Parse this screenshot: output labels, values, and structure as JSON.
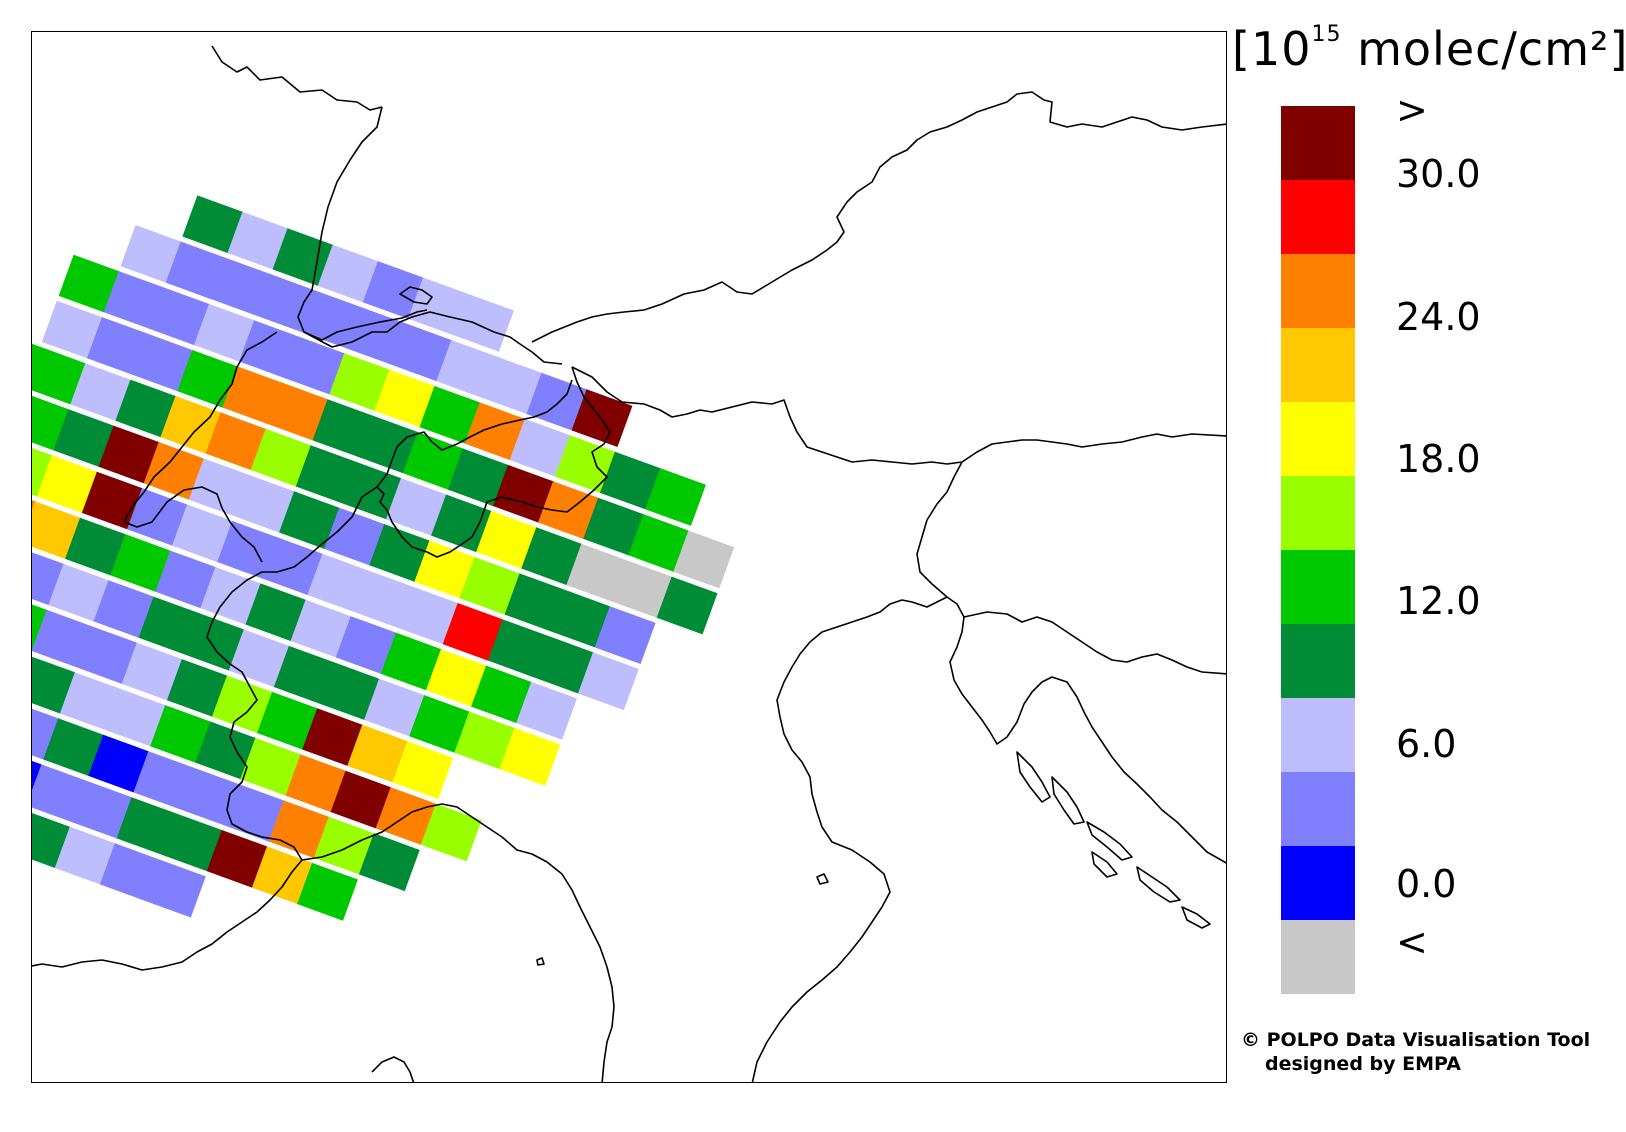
{
  "legend": {
    "unit_prefix": "[10",
    "unit_exp": "15",
    "unit_suffix": " molec/cm²]",
    "colors": [
      "#800000",
      "#ff0000",
      "#ff8000",
      "#ffc800",
      "#ffff00",
      "#99ff00",
      "#00c800",
      "#008c37",
      "#bebeff",
      "#8080ff",
      "#0000ff",
      "#c8c8c8"
    ],
    "above_label": ">",
    "below_label": "<",
    "ticks": [
      "30.0",
      "24.0",
      "18.0",
      "12.0",
      "6.0",
      "0.0"
    ]
  },
  "credit": {
    "line1": "© POLPO Data Visualisation Tool",
    "line2": "designed by EMPA"
  },
  "swaths": [
    [
      7,
      8,
      7,
      8,
      9,
      8,
      8
    ],
    [
      8,
      9,
      9,
      9,
      9,
      9,
      9,
      8,
      8,
      9,
      0
    ],
    [
      6,
      9,
      9,
      8,
      9,
      9,
      5,
      4,
      6,
      2,
      8,
      5,
      7,
      6
    ],
    [
      8,
      9,
      9,
      6,
      2,
      2,
      7,
      7,
      6,
      7,
      0,
      2,
      7,
      6,
      11
    ],
    [
      6,
      6,
      8,
      7,
      3,
      2,
      5,
      7,
      7,
      8,
      7,
      4,
      7,
      11,
      11,
      7
    ],
    [
      6,
      6,
      7,
      0,
      2,
      8,
      8,
      7,
      9,
      7,
      4,
      5,
      7,
      7,
      9
    ],
    [
      5,
      5,
      4,
      0,
      9,
      8,
      9,
      9,
      8,
      8,
      8,
      1,
      7,
      7,
      8
    ],
    [
      0,
      2,
      3,
      7,
      6,
      9,
      8,
      7,
      8,
      9,
      6,
      4,
      6,
      8
    ],
    [
      5,
      6,
      9,
      8,
      9,
      7,
      7,
      8,
      7,
      7,
      8,
      6,
      5,
      4
    ],
    [
      7,
      3,
      6,
      9,
      9,
      8,
      7,
      5,
      6,
      0,
      3,
      4
    ],
    [
      10,
      10,
      9,
      7,
      8,
      8,
      6,
      7,
      5,
      2,
      0,
      2,
      5
    ],
    [
      10,
      11,
      8,
      9,
      7,
      10,
      9,
      9,
      9,
      2,
      5,
      7
    ],
    [
      10,
      9,
      10,
      10,
      9,
      9,
      7,
      7,
      0,
      3,
      6
    ],
    [
      8,
      8,
      7,
      7,
      7,
      8,
      9,
      9
    ]
  ]
}
